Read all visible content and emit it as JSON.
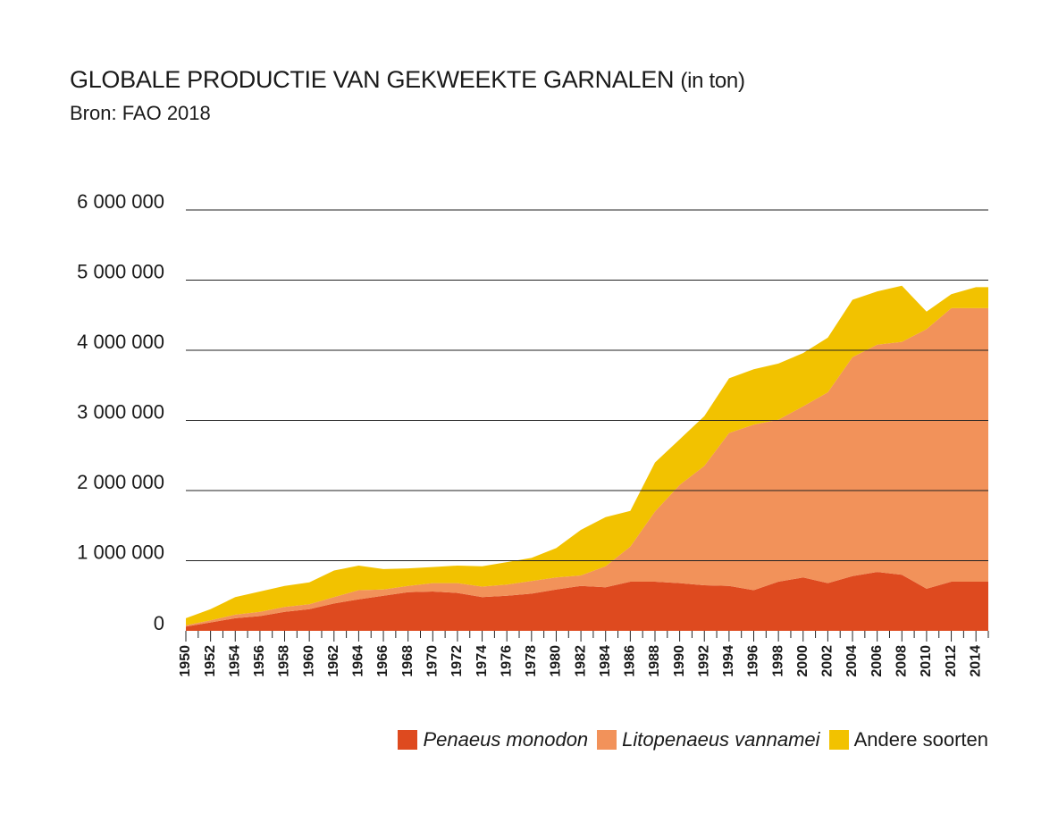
{
  "title": "GLOBALE PRODUCTIE VAN GEKWEEKTE GARNALEN",
  "title_unit": "(in ton)",
  "subtitle": "Bron: FAO 2018",
  "colors": {
    "monodon": "#de4a1f",
    "vannamei": "#f2925a",
    "andere": "#f2c200"
  },
  "chart_data": {
    "type": "area",
    "stacked": true,
    "x": [
      1950,
      1952,
      1954,
      1956,
      1958,
      1960,
      1962,
      1964,
      1966,
      1968,
      1970,
      1972,
      1974,
      1976,
      1978,
      1980,
      1982,
      1984,
      1986,
      1988,
      1990,
      1992,
      1994,
      1996,
      1998,
      2000,
      2002,
      2004,
      2006,
      2008,
      2010,
      2012,
      2014,
      2015
    ],
    "x_tick_labels": [
      "1950",
      "1952",
      "1954",
      "1956",
      "1958",
      "1960",
      "1962",
      "1964",
      "1966",
      "1968",
      "1970",
      "1972",
      "1974",
      "1976",
      "1978",
      "1980",
      "1982",
      "1984",
      "1986",
      "1988",
      "1990",
      "1992",
      "1994",
      "1996",
      "1998",
      "2000",
      "2002",
      "2004",
      "2006",
      "2008",
      "2010",
      "2012",
      "2014"
    ],
    "y_tick_labels": [
      "0",
      "1 000 000",
      "2 000 000",
      "3 000 000",
      "4 000 000",
      "5 000 000",
      "6 000 000"
    ],
    "ylim": [
      0,
      6000000
    ],
    "grid": true,
    "legend_position": "bottom-right",
    "series": [
      {
        "name": "Penaeus monodon",
        "italic": true,
        "values": [
          60000,
          120000,
          180000,
          210000,
          270000,
          310000,
          390000,
          450000,
          500000,
          550000,
          560000,
          540000,
          480000,
          500000,
          530000,
          590000,
          640000,
          620000,
          700000,
          700000,
          680000,
          650000,
          640000,
          580000,
          700000,
          760000,
          680000,
          780000,
          840000,
          800000,
          600000,
          700000,
          700000,
          700000
        ]
      },
      {
        "name": "Litopenaeus vannamei",
        "italic": true,
        "values": [
          20000,
          30000,
          50000,
          60000,
          70000,
          70000,
          90000,
          130000,
          90000,
          90000,
          120000,
          140000,
          150000,
          160000,
          180000,
          170000,
          150000,
          300000,
          500000,
          1000000,
          1400000,
          1700000,
          2180000,
          2360000,
          2310000,
          2440000,
          2720000,
          3120000,
          3240000,
          3320000,
          3700000,
          3900000,
          3900000,
          3900000
        ]
      },
      {
        "name": "Andere soorten",
        "values": [
          100000,
          160000,
          250000,
          290000,
          300000,
          310000,
          380000,
          350000,
          290000,
          250000,
          230000,
          250000,
          290000,
          320000,
          330000,
          420000,
          650000,
          700000,
          510000,
          700000,
          650000,
          710000,
          780000,
          790000,
          800000,
          760000,
          780000,
          820000,
          760000,
          800000,
          250000,
          200000,
          300000,
          300000
        ]
      }
    ]
  }
}
